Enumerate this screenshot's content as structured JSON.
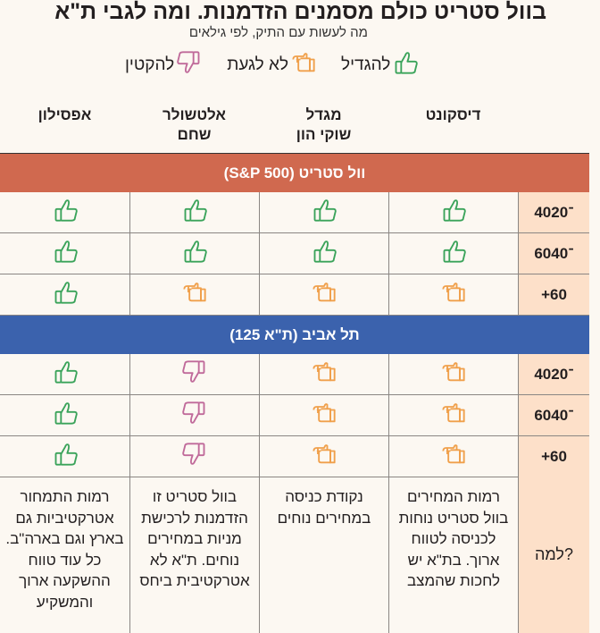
{
  "title": "בוול סטריט כולם מסמנים הזדמנות. ומה לגבי ת\"א",
  "subtitle": "מה לעשות עם התיק, לפי גילאים",
  "legend": [
    {
      "label": "להגדיל",
      "icon": "thumbs-up-icon",
      "color": "#3aa35a"
    },
    {
      "label": "לא לגעת",
      "icon": "hand-point-icon",
      "color": "#f0a04b"
    },
    {
      "label": "להקטין",
      "icon": "thumbs-down-icon",
      "color": "#c06a9a"
    }
  ],
  "columns": [
    "דיסקונט",
    "מגדל\nשוקי הון",
    "אלטשולר\nשחם",
    "אפסילון"
  ],
  "sections": [
    {
      "title": "וול סטריט (S&P 500)",
      "color": "#d0694f",
      "rows": [
        {
          "age": "40־20",
          "actions": [
            "up",
            "up",
            "up",
            "up"
          ]
        },
        {
          "age": "60־40",
          "actions": [
            "up",
            "up",
            "up",
            "up"
          ]
        },
        {
          "age": "+60",
          "actions": [
            "hold",
            "hold",
            "hold",
            "up"
          ]
        }
      ]
    },
    {
      "title": "תל אביב (ת\"א 125)",
      "color": "#3b62ad",
      "rows": [
        {
          "age": "40־20",
          "actions": [
            "hold",
            "hold",
            "down",
            "up"
          ]
        },
        {
          "age": "60־40",
          "actions": [
            "hold",
            "hold",
            "down",
            "up"
          ]
        },
        {
          "age": "+60",
          "actions": [
            "hold",
            "hold",
            "down",
            "up"
          ]
        }
      ]
    }
  ],
  "why": {
    "label": "למה?",
    "reasons": [
      "רמות המחירים בוול סטריט נוחות לכניסה לטווח ארוך. בת\"א יש לחכות שהמצב",
      "נקודת כניסה במחירים נוחים",
      "בוול סטריט זו הזדמנות לרכישת מניות במחירים נוחים. ת\"א לא אטרקטיבית ביחס",
      "רמות התמחור אטרקטיביות גם בארץ וגם בארה\"ב. כל עוד טווח ההשקעה ארוך והמשקיע"
    ]
  }
}
